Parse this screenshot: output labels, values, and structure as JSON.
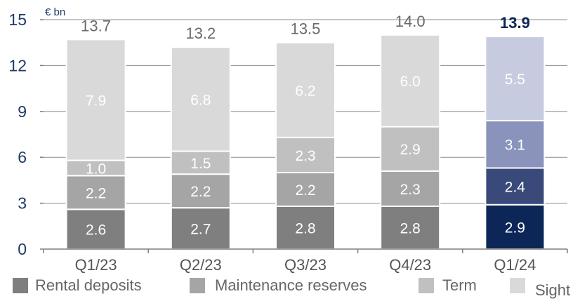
{
  "chart_data": {
    "type": "bar",
    "stacked": true,
    "unit_label": "€ bn",
    "categories": [
      "Q1/23",
      "Q2/23",
      "Q3/23",
      "Q4/23",
      "Q1/24"
    ],
    "totals": [
      "13.7",
      "13.2",
      "13.5",
      "14.0",
      "13.9"
    ],
    "series": [
      {
        "name": "Rental  deposits",
        "values": [
          2.6,
          2.7,
          2.8,
          2.8,
          2.9
        ],
        "labels": [
          "2.6",
          "2.7",
          "2.8",
          "2.8",
          "2.9"
        ],
        "color": "#7f7f7f",
        "highlight_color": "#0c2657"
      },
      {
        "name": "Maintenance reserves",
        "values": [
          2.2,
          2.2,
          2.2,
          2.3,
          2.4
        ],
        "labels": [
          "2.2",
          "2.2",
          "2.2",
          "2.3",
          "2.4"
        ],
        "color": "#a5a5a5",
        "highlight_color": "#39497a"
      },
      {
        "name": "Term",
        "values": [
          1.0,
          1.5,
          2.3,
          2.9,
          3.1
        ],
        "labels": [
          "1.0",
          "1.5",
          "2.3",
          "2.9",
          "3.1"
        ],
        "color": "#c0c0c0",
        "highlight_color": "#8a93bb"
      },
      {
        "name": "Sight",
        "values": [
          7.9,
          6.8,
          6.2,
          6.0,
          5.5
        ],
        "labels": [
          "7.9",
          "6.8",
          "6.2",
          "6.0",
          "5.5"
        ],
        "color": "#d9d9d9",
        "highlight_color": "#c7cbe0"
      }
    ],
    "highlight_index": 4,
    "ylim": [
      0,
      15
    ],
    "yticks": [
      "0",
      "3",
      "6",
      "9",
      "12",
      "15"
    ],
    "grid": true,
    "legend_position": "bottom"
  }
}
